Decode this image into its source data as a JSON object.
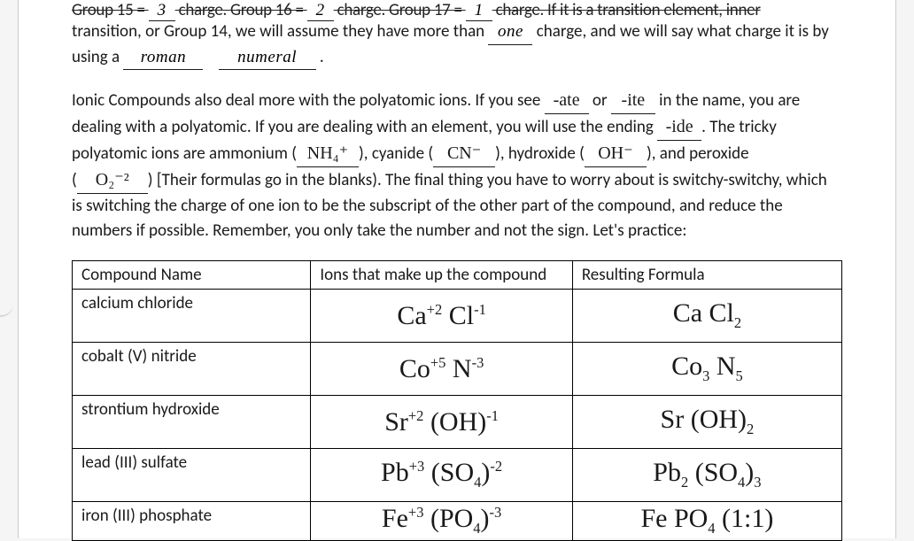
{
  "topline": {
    "prefix": "Group 15 = ",
    "b1": "3",
    "mid1": " charge. Group 16 = ",
    "b2": "2",
    "mid2": " charge. Group 17 = ",
    "b3": "1",
    "suffix": " charge. If it is a transition element, inner"
  },
  "p1": {
    "l1a": "transition, or Group 14, we will assume they have more than ",
    "blank_one": "one",
    "l1b": " charge, and we will say what charge it is by",
    "l2a": "using a ",
    "blank_roman": "roman",
    "blank_numeral": "numeral",
    "l2b": "."
  },
  "p2": {
    "s1": "Ionic Compounds also deal more with the polyatomic ions.  If you see ",
    "ate": "-ate",
    "s2": " or ",
    "ite": "-ite",
    "s3": " in the name, you are",
    "s4": "dealing with a polyatomic.  If you are dealing with an element, you will use the ending ",
    "ide": "-ide",
    "s5": ".  The tricky",
    "s6": "polyatomic ions are ammonium (",
    "nh4": "NH₄⁺",
    "s7": "), cyanide (",
    "cn": "CN⁻",
    "s8": "), hydroxide (",
    "oh": "OH⁻",
    "s9": "), and peroxide",
    "s10": "(",
    "o2": "O₂⁻²",
    "s11": ") [Their formulas go in the blanks).  The final thing you have to worry about is switchy-switchy, which",
    "s12": "is switching the charge of one ion to be the subscript of the other part of the compound, and reduce the",
    "s13": "numbers if possible.  Remember, you only take the number and not the sign. Let's practice:"
  },
  "table": {
    "headers": [
      "Compound Name",
      "Ions that make up the compound",
      "Resulting Formula"
    ],
    "rows": [
      {
        "name": "calcium chloride",
        "ions_html": "Ca<span class='sup'>+2</span>  Cl<span class='sup'>-1</span>",
        "formula_html": "Ca Cl<span class='sub'>2</span>"
      },
      {
        "name": "cobalt (V) nitride",
        "ions_html": "Co<span class='sup'>+5</span>  N<span class='sup'>-3</span>",
        "formula_html": "Co<span class='sub'>3</span> N<span class='sub'>5</span>"
      },
      {
        "name": "strontium hydroxide",
        "ions_html": "Sr<span class='sup'>+2</span>  (OH)<span class='sup'>-1</span>",
        "formula_html": "Sr (OH)<span class='sub'>2</span>"
      },
      {
        "name": "lead (III) sulfate",
        "ions_html": "Pb<span class='sup'>+3</span>  (SO<span class='sub'>4</span>)<span class='sup'>-2</span>",
        "formula_html": "Pb<span class='sub'>2</span> (SO<span class='sub'>4</span>)<span class='sub'>3</span>"
      },
      {
        "name": "iron (III) phosphate",
        "ions_html": "Fe<span class='sup'>+3</span>  (PO<span class='sub'>4</span>)<span class='sup'>-3</span>",
        "formula_html": "Fe PO<span class='sub'>4</span> (1:1)"
      }
    ]
  }
}
